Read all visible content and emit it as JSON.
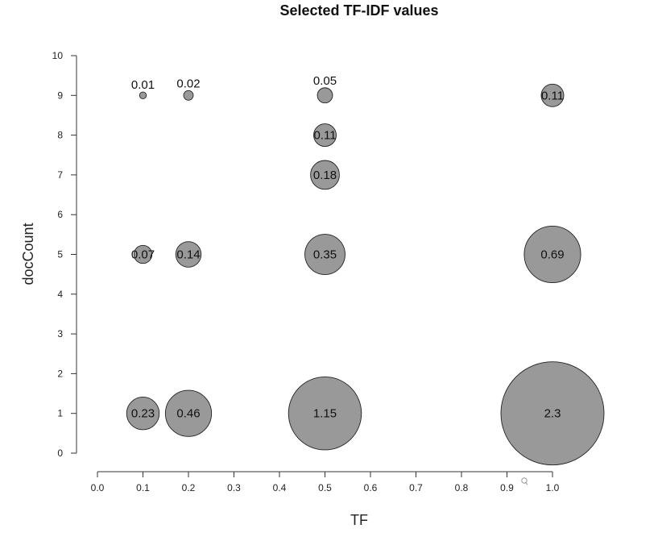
{
  "chart_data": {
    "type": "scatter",
    "title": "Selected TF-IDF values",
    "xlabel": "TF",
    "ylabel": "docCount",
    "xlim": [
      0.0,
      1.0
    ],
    "ylim": [
      0,
      10
    ],
    "x_ticks": [
      "0.0",
      "0.1",
      "0.2",
      "0.3",
      "0.4",
      "0.5",
      "0.6",
      "0.7",
      "0.8",
      "0.9",
      "1.0"
    ],
    "y_ticks": [
      "0",
      "1",
      "2",
      "3",
      "4",
      "5",
      "6",
      "7",
      "8",
      "9",
      "10"
    ],
    "grid": false,
    "marker_color": "#999999",
    "marker_edge_color": "#222222",
    "points": [
      {
        "x": 0.1,
        "y": 9,
        "value": 0.01,
        "label": "0.01"
      },
      {
        "x": 0.2,
        "y": 9,
        "value": 0.02,
        "label": "0.02"
      },
      {
        "x": 0.5,
        "y": 9,
        "value": 0.05,
        "label": "0.05"
      },
      {
        "x": 1.0,
        "y": 9,
        "value": 0.11,
        "label": "0.11"
      },
      {
        "x": 0.5,
        "y": 8,
        "value": 0.11,
        "label": "0.11"
      },
      {
        "x": 0.5,
        "y": 7,
        "value": 0.18,
        "label": "0.18"
      },
      {
        "x": 0.1,
        "y": 5,
        "value": 0.07,
        "label": "0.07"
      },
      {
        "x": 0.2,
        "y": 5,
        "value": 0.14,
        "label": "0.14"
      },
      {
        "x": 0.5,
        "y": 5,
        "value": 0.35,
        "label": "0.35"
      },
      {
        "x": 1.0,
        "y": 5,
        "value": 0.69,
        "label": "0.69"
      },
      {
        "x": 0.1,
        "y": 1,
        "value": 0.23,
        "label": "0.23"
      },
      {
        "x": 0.2,
        "y": 1,
        "value": 0.46,
        "label": "0.46"
      },
      {
        "x": 0.5,
        "y": 1,
        "value": 1.15,
        "label": "1.15"
      },
      {
        "x": 1.0,
        "y": 1,
        "value": 2.3,
        "label": "2.3"
      }
    ]
  }
}
